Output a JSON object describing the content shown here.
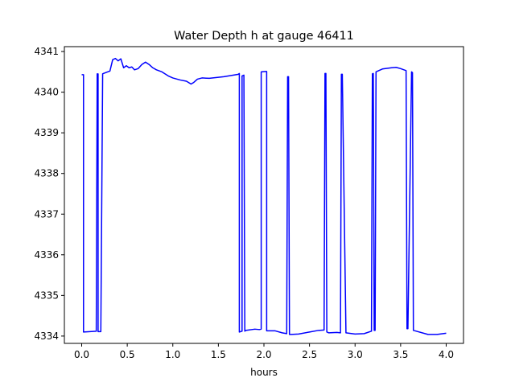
{
  "chart_data": {
    "type": "line",
    "title": "Water Depth h at gauge 46411",
    "xlabel": "hours",
    "ylabel": "",
    "xlim": [
      -0.19,
      4.19
    ],
    "ylim": [
      4333.82,
      4341.12
    ],
    "xticks": [
      0.0,
      0.5,
      1.0,
      1.5,
      2.0,
      2.5,
      3.0,
      3.5,
      4.0
    ],
    "xtick_labels": [
      "0.0",
      "0.5",
      "1.0",
      "1.5",
      "2.0",
      "2.5",
      "3.0",
      "3.5",
      "4.0"
    ],
    "yticks": [
      4334,
      4335,
      4336,
      4337,
      4338,
      4339,
      4340,
      4341
    ],
    "ytick_labels": [
      "4334",
      "4335",
      "4336",
      "4337",
      "4338",
      "4339",
      "4340",
      "4341"
    ],
    "grid": false,
    "series": [
      {
        "color": "#0000ff",
        "x": [
          0.0,
          0.02,
          0.02,
          0.16,
          0.17,
          0.18,
          0.18,
          0.21,
          0.23,
          0.24,
          0.31,
          0.34,
          0.37,
          0.4,
          0.43,
          0.46,
          0.49,
          0.52,
          0.55,
          0.58,
          0.62,
          0.66,
          0.7,
          0.74,
          0.78,
          0.82,
          0.88,
          0.95,
          1.0,
          1.08,
          1.15,
          1.2,
          1.23,
          1.27,
          1.32,
          1.4,
          1.48,
          1.56,
          1.64,
          1.72,
          1.73,
          1.73,
          1.76,
          1.76,
          1.78,
          1.79,
          1.8,
          1.8,
          1.9,
          1.95,
          1.97,
          1.97,
          2.02,
          2.03,
          2.03,
          2.12,
          2.2,
          2.25,
          2.26,
          2.27,
          2.28,
          2.3,
          2.38,
          2.5,
          2.6,
          2.66,
          2.67,
          2.68,
          2.69,
          2.71,
          2.8,
          2.84,
          2.85,
          2.86,
          2.9,
          3.0,
          3.1,
          3.18,
          3.19,
          3.2,
          3.21,
          3.22,
          3.23,
          3.3,
          3.4,
          3.45,
          3.5,
          3.56,
          3.57,
          3.58,
          3.62,
          3.63,
          3.64,
          3.8,
          3.9,
          4.0
        ],
        "y": [
          4340.43,
          4340.43,
          4334.1,
          4334.12,
          4340.45,
          4340.45,
          4334.11,
          4334.11,
          4340.45,
          4340.46,
          4340.52,
          4340.8,
          4340.83,
          4340.77,
          4340.82,
          4340.6,
          4340.65,
          4340.6,
          4340.62,
          4340.55,
          4340.58,
          4340.68,
          4340.74,
          4340.68,
          4340.6,
          4340.55,
          4340.5,
          4340.4,
          4340.35,
          4340.3,
          4340.27,
          4340.2,
          4340.24,
          4340.32,
          4340.35,
          4340.34,
          4340.36,
          4340.38,
          4340.41,
          4340.44,
          4340.46,
          4334.1,
          4334.12,
          4340.4,
          4340.42,
          4334.12,
          4334.14,
          4334.14,
          4334.17,
          4334.16,
          4334.17,
          4340.5,
          4340.51,
          4340.51,
          4334.13,
          4334.13,
          4334.08,
          4334.06,
          4340.38,
          4340.38,
          4334.04,
          4334.04,
          4334.05,
          4334.1,
          4334.14,
          4334.15,
          4340.46,
          4340.46,
          4334.1,
          4334.08,
          4334.09,
          4334.08,
          4340.44,
          4340.44,
          4334.08,
          4334.05,
          4334.06,
          4334.12,
          4340.45,
          4340.46,
          4334.14,
          4334.14,
          4340.5,
          4340.57,
          4340.6,
          4340.61,
          4340.58,
          4340.53,
          4334.18,
          4334.18,
          4340.5,
          4340.48,
          4334.14,
          4334.04,
          4334.04,
          4334.07
        ]
      }
    ]
  }
}
